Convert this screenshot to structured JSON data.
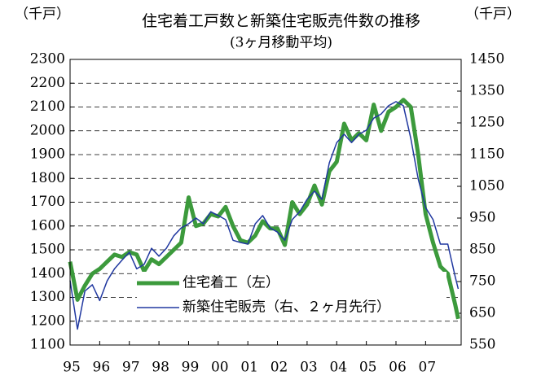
{
  "chart_data": {
    "type": "line",
    "title": "住宅着工戸数と新築住宅販売件数の推移",
    "subtitle": "(3ヶ月移動平均)",
    "y_label": "（千戸）",
    "y2_label": "（千戸）",
    "x": [
      1995,
      1995.25,
      1995.5,
      1995.75,
      1996,
      1996.25,
      1996.5,
      1996.75,
      1997,
      1997.25,
      1997.5,
      1997.75,
      1998,
      1998.25,
      1998.5,
      1998.75,
      1999,
      1999.25,
      1999.5,
      1999.75,
      2000,
      2000.25,
      2000.5,
      2000.75,
      2001,
      2001.25,
      2001.5,
      2001.75,
      2002,
      2002.25,
      2002.5,
      2002.75,
      2003,
      2003.25,
      2003.5,
      2003.75,
      2004,
      2004.25,
      2004.5,
      2004.75,
      2005,
      2005.25,
      2005.5,
      2005.75,
      2006,
      2006.25,
      2006.5,
      2006.75,
      2007,
      2007.25,
      2007.5,
      2007.75,
      2008,
      2008.1
    ],
    "series": [
      {
        "name": "住宅着工（左）",
        "color": "#3c9a3c",
        "axis": "y",
        "values": [
          1450,
          1290,
          1350,
          1400,
          1420,
          1450,
          1480,
          1470,
          1490,
          1480,
          1410,
          1460,
          1440,
          1470,
          1500,
          1530,
          1720,
          1600,
          1610,
          1650,
          1640,
          1680,
          1600,
          1540,
          1530,
          1560,
          1620,
          1590,
          1590,
          1520,
          1700,
          1650,
          1690,
          1770,
          1690,
          1830,
          1870,
          2030,
          1960,
          1990,
          1960,
          2110,
          2000,
          2080,
          2100,
          2130,
          2100,
          1900,
          1650,
          1530,
          1430,
          1400,
          1270,
          1210
        ]
      },
      {
        "name": "新築住宅販売（右、２ヶ月先行）",
        "color": "#2038a0",
        "axis": "y2",
        "values": [
          753,
          600,
          720,
          740,
          690,
          752,
          790,
          817,
          842,
          790,
          804,
          855,
          830,
          855,
          894,
          919,
          932,
          950,
          932,
          970,
          958,
          945,
          880,
          873,
          868,
          932,
          958,
          919,
          906,
          880,
          945,
          970,
          1009,
          1035,
          1009,
          1124,
          1188,
          1214,
          1188,
          1214,
          1227,
          1265,
          1278,
          1304,
          1317,
          1304,
          1201,
          1073,
          983,
          945,
          868,
          868,
          765,
          727
        ]
      }
    ],
    "xlim": [
      1995,
      2008.2
    ],
    "xticks": [
      {
        "value": 1995,
        "label": "95"
      },
      {
        "value": 1996,
        "label": "96"
      },
      {
        "value": 1997,
        "label": "97"
      },
      {
        "value": 1998,
        "label": "98"
      },
      {
        "value": 1999,
        "label": "99"
      },
      {
        "value": 2000,
        "label": "00"
      },
      {
        "value": 2001,
        "label": "01"
      },
      {
        "value": 2002,
        "label": "02"
      },
      {
        "value": 2003,
        "label": "03"
      },
      {
        "value": 2004,
        "label": "04"
      },
      {
        "value": 2005,
        "label": "05"
      },
      {
        "value": 2006,
        "label": "06"
      },
      {
        "value": 2007,
        "label": "07"
      }
    ],
    "ylim": [
      1100,
      2300
    ],
    "yticks": [
      1100,
      1200,
      1300,
      1400,
      1500,
      1600,
      1700,
      1800,
      1900,
      2000,
      2100,
      2200,
      2300
    ],
    "y2lim": [
      550,
      1450
    ],
    "y2ticks": [
      550,
      650,
      750,
      850,
      950,
      1050,
      1150,
      1250,
      1350,
      1450
    ],
    "grid": true,
    "legend": "bottom"
  }
}
